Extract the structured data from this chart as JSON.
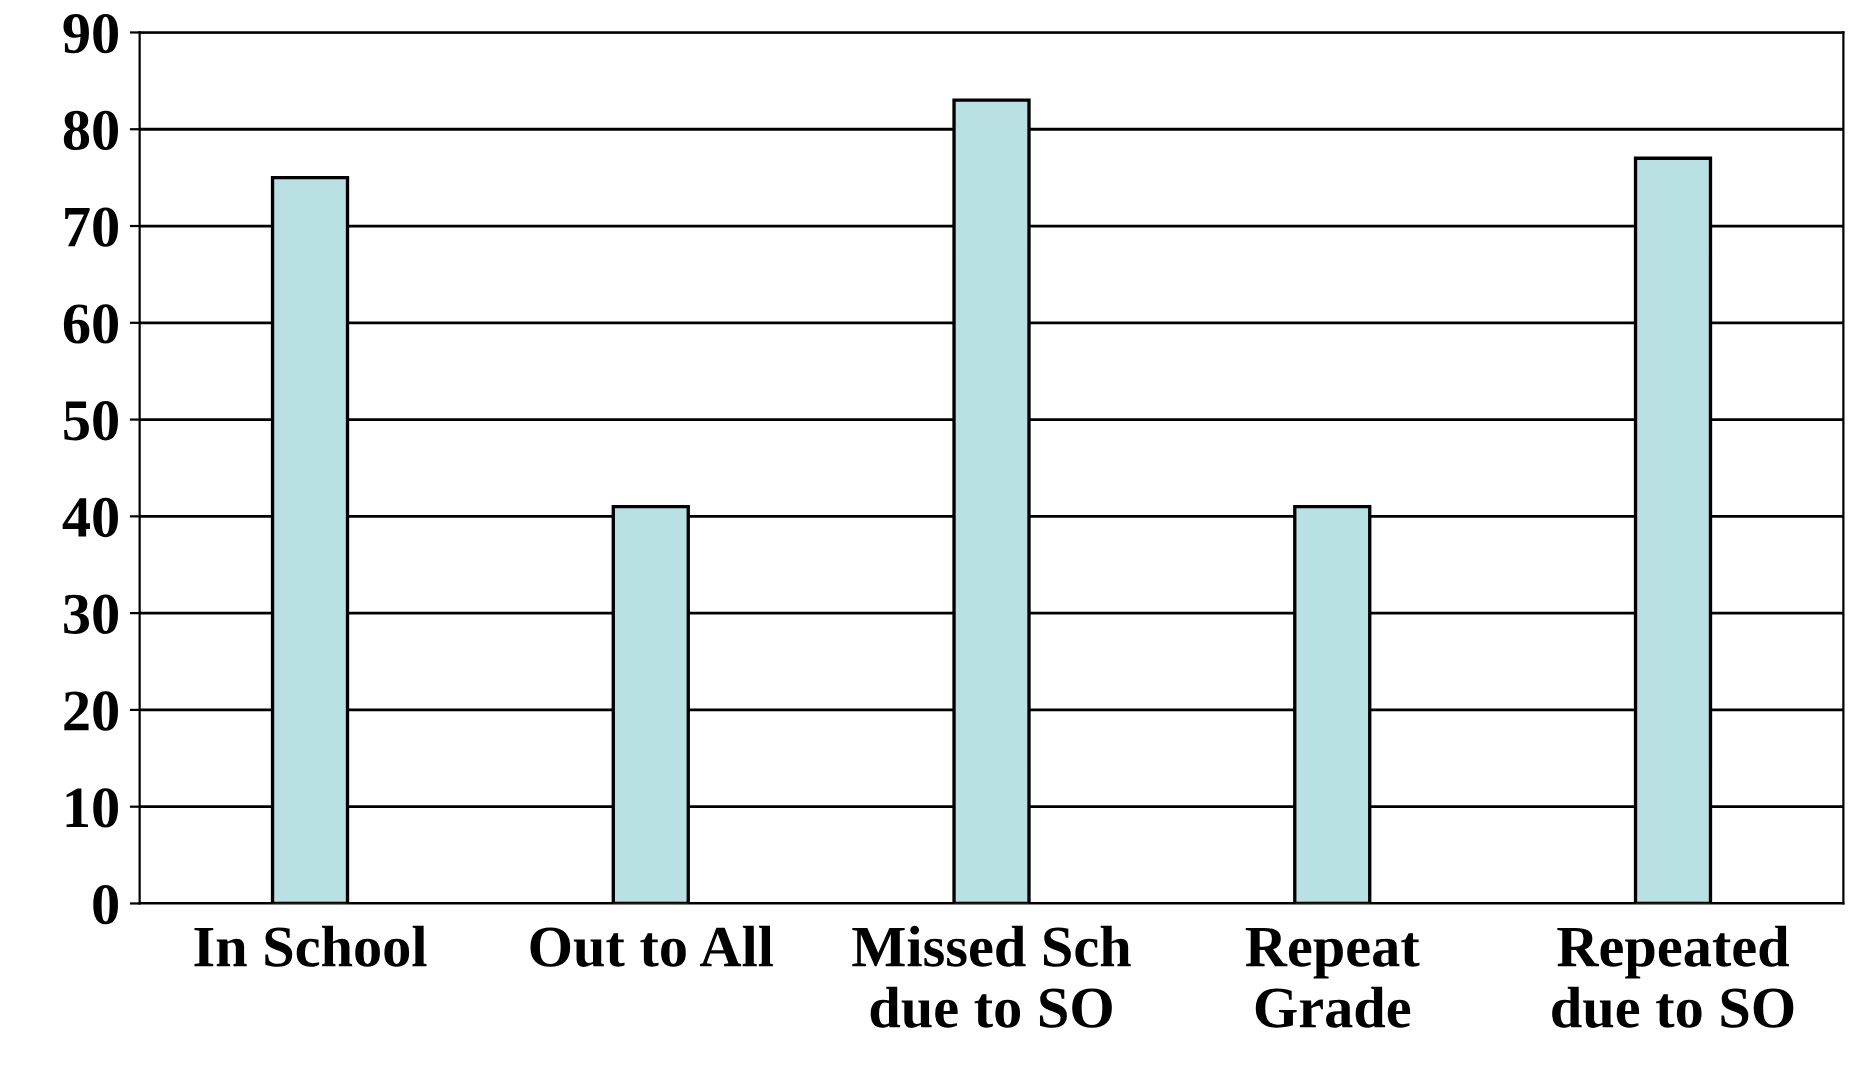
{
  "chart_data": {
    "type": "bar",
    "categories": [
      "In School",
      "Out to All",
      "Missed Sch\ndue to SO",
      "Repeat\nGrade",
      "Repeated\ndue to SO"
    ],
    "values": [
      75,
      41,
      83,
      41,
      77
    ],
    "color": "#b9e0e3",
    "ylim": [
      0,
      90
    ],
    "yticks": [
      0,
      10,
      20,
      30,
      40,
      50,
      60,
      70,
      80,
      90
    ],
    "grid": "y"
  }
}
